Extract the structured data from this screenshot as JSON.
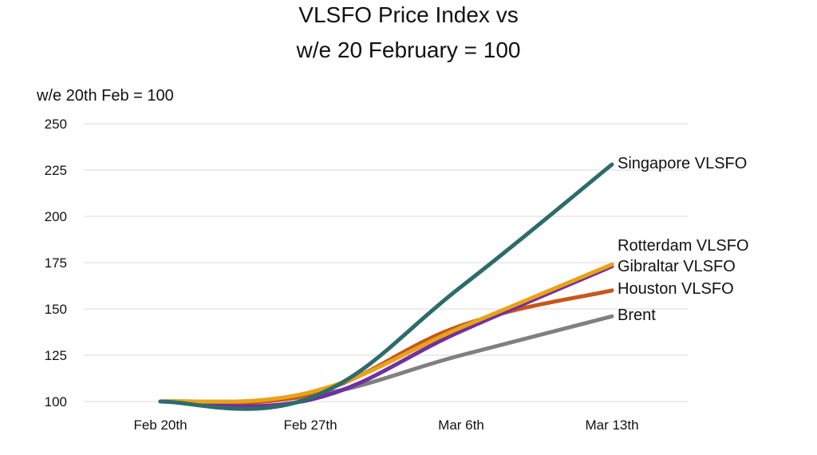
{
  "chart_data": {
    "type": "line",
    "title": [
      "VLSFO Price Index vs",
      "w/e 20 February = 100"
    ],
    "ylabel": "w/e 20th Feb = 100",
    "xlabel": "",
    "categories": [
      "Feb 20th",
      "Feb 27th",
      "Mar 6th",
      "Mar 13th"
    ],
    "ylim": [
      100,
      250
    ],
    "yticks": [
      100,
      125,
      150,
      175,
      200,
      225,
      250
    ],
    "grid": true,
    "legend": "direct labels at line ends",
    "series": [
      {
        "name": "Brent",
        "color": "#808080",
        "values": [
          100,
          103,
          125,
          146
        ]
      },
      {
        "name": "Houston VLSFO",
        "color": "#c8561a",
        "values": [
          100,
          104,
          141,
          160
        ]
      },
      {
        "name": "Gibraltar VLSFO",
        "color": "#7030a0",
        "values": [
          100,
          101,
          138,
          173
        ]
      },
      {
        "name": "Rotterdam VLSFO",
        "color": "#e8a317",
        "values": [
          100,
          105,
          140,
          174
        ]
      },
      {
        "name": "Singapore VLSFO",
        "color": "#2e6b6b",
        "values": [
          100,
          102,
          162,
          228
        ]
      }
    ]
  }
}
